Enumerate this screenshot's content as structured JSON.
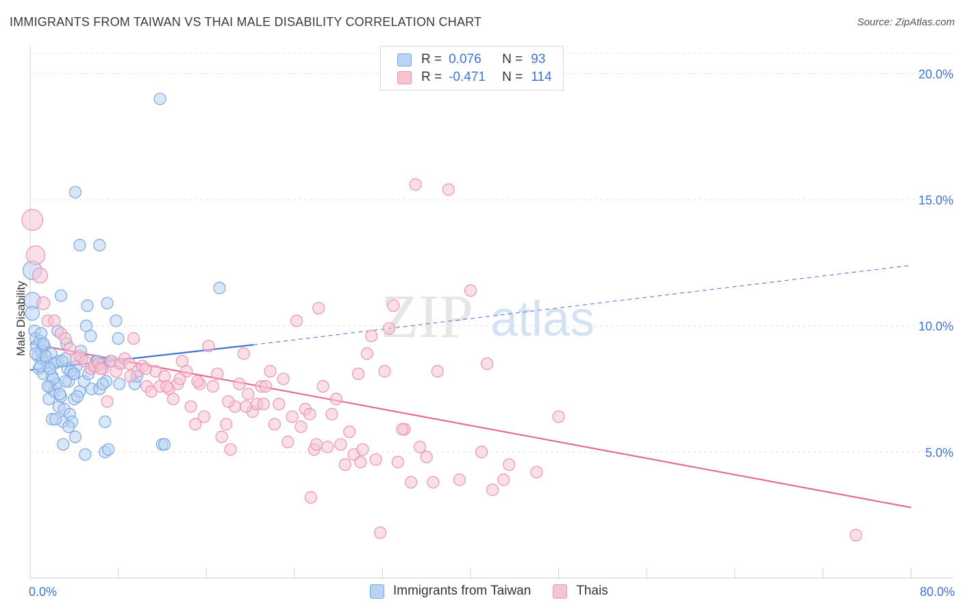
{
  "title": "IMMIGRANTS FROM TAIWAN VS THAI MALE DISABILITY CORRELATION CHART",
  "source": "Source: ZipAtlas.com",
  "watermark": {
    "zip": "ZIP",
    "atlas": "atlas"
  },
  "legend": {
    "r_label": "R =",
    "n_label": "N =",
    "rows": [
      {
        "r": "0.076",
        "n": "93",
        "fill": "#b9d3f3",
        "stroke": "#7aa7e0"
      },
      {
        "r": "-0.471",
        "n": "114",
        "fill": "#f8c4d4",
        "stroke": "#ec93b0"
      }
    ]
  },
  "bottom_legend": [
    {
      "label": "Immigrants from Taiwan",
      "fill": "#b9d3f3",
      "stroke": "#7aa7e0"
    },
    {
      "label": "Thais",
      "fill": "#f8c4d4",
      "stroke": "#ec93b0"
    }
  ],
  "chart_data": {
    "type": "scatter",
    "xlabel": "",
    "ylabel": "Male Disability",
    "xlim": [
      0,
      80
    ],
    "ylim": [
      0,
      20.8
    ],
    "x_tick_labels": [
      {
        "value": 0,
        "label": "0.0%"
      },
      {
        "value": 80,
        "label": "80.0%"
      }
    ],
    "y_tick_labels": [
      {
        "value": 5,
        "label": "5.0%"
      },
      {
        "value": 10,
        "label": "10.0%"
      },
      {
        "value": 15,
        "label": "15.0%"
      },
      {
        "value": 20,
        "label": "20.0%"
      }
    ],
    "x_minor_ticks": [
      8,
      16,
      24,
      32,
      40,
      48,
      56,
      64,
      72,
      80
    ],
    "grid": true,
    "series": [
      {
        "name": "Immigrants from Taiwan",
        "color": "#3b74d1",
        "fill": "#b9d3f3",
        "trend": {
          "x": [
            0,
            20.3
          ],
          "y": [
            8.25,
            9.25
          ],
          "dashed_to": {
            "x": [
              20.3,
              80
            ],
            "y": [
              9.25,
              12.4
            ]
          }
        },
        "points": [
          [
            0.2,
            12.2,
            1.6
          ],
          [
            0.2,
            11.0,
            1.4
          ],
          [
            0.2,
            10.5,
            1.2
          ],
          [
            0.4,
            9.8,
            1
          ],
          [
            0.5,
            9.5,
            1
          ],
          [
            0.6,
            9.2,
            1
          ],
          [
            0.7,
            8.8,
            1
          ],
          [
            0.8,
            8.3,
            1
          ],
          [
            0.9,
            9.4,
            1
          ],
          [
            1.0,
            9.0,
            1
          ],
          [
            1.1,
            8.7,
            1
          ],
          [
            1.2,
            8.1,
            1
          ],
          [
            1.3,
            9.2,
            1
          ],
          [
            1.5,
            8.6,
            1
          ],
          [
            1.6,
            8.4,
            1
          ],
          [
            1.7,
            7.1,
            1
          ],
          [
            1.8,
            7.6,
            1
          ],
          [
            2.0,
            8.0,
            1
          ],
          [
            2.0,
            6.3,
            1
          ],
          [
            2.2,
            7.4,
            1
          ],
          [
            2.4,
            7.7,
            1
          ],
          [
            2.5,
            8.6,
            1
          ],
          [
            2.6,
            6.8,
            1
          ],
          [
            2.8,
            7.2,
            1
          ],
          [
            3.0,
            6.2,
            1
          ],
          [
            3.1,
            6.7,
            1
          ],
          [
            3.2,
            8.7,
            1
          ],
          [
            3.3,
            9.3,
            1
          ],
          [
            3.4,
            8.3,
            1
          ],
          [
            3.5,
            7.8,
            1
          ],
          [
            3.6,
            6.5,
            1
          ],
          [
            3.8,
            6.2,
            1
          ],
          [
            3.9,
            8.1,
            1
          ],
          [
            4.0,
            7.1,
            1
          ],
          [
            4.1,
            5.6,
            1
          ],
          [
            4.2,
            8.4,
            1
          ],
          [
            4.5,
            7.4,
            1
          ],
          [
            4.6,
            9.0,
            1
          ],
          [
            4.7,
            8.7,
            1
          ],
          [
            4.9,
            7.8,
            1
          ],
          [
            5.0,
            4.9,
            1
          ],
          [
            5.1,
            10.0,
            1
          ],
          [
            5.2,
            10.8,
            1
          ],
          [
            5.3,
            8.1,
            1
          ],
          [
            5.5,
            9.6,
            1
          ],
          [
            5.6,
            7.5,
            1
          ],
          [
            6.0,
            8.6,
            1
          ],
          [
            6.3,
            7.5,
            1
          ],
          [
            6.5,
            8.5,
            1
          ],
          [
            6.7,
            8.5,
            1
          ],
          [
            6.8,
            6.2,
            1
          ],
          [
            6.8,
            5.0,
            1
          ],
          [
            6.9,
            7.8,
            1
          ],
          [
            7.0,
            10.9,
            1
          ],
          [
            7.1,
            5.1,
            1
          ],
          [
            7.3,
            8.6,
            1
          ],
          [
            7.8,
            10.2,
            1
          ],
          [
            8.0,
            9.5,
            1
          ],
          [
            8.1,
            7.7,
            1
          ],
          [
            8.2,
            8.5,
            1
          ],
          [
            9.5,
            7.7,
            1
          ],
          [
            9.7,
            8.0,
            1
          ],
          [
            11.8,
            19.0,
            1
          ],
          [
            12.0,
            5.3,
            1
          ],
          [
            12.2,
            5.3,
            1
          ],
          [
            17.2,
            11.5,
            1
          ],
          [
            4.1,
            15.3,
            1
          ],
          [
            4.5,
            13.2,
            1
          ],
          [
            6.3,
            13.2,
            1
          ],
          [
            2.8,
            11.2,
            1
          ],
          [
            2.5,
            9.8,
            1
          ],
          [
            1.9,
            8.9,
            1
          ],
          [
            2.1,
            7.9,
            1
          ],
          [
            3.0,
            5.3,
            1
          ],
          [
            2.2,
            8.5,
            1
          ],
          [
            1.4,
            8.8,
            1
          ],
          [
            0.9,
            8.4,
            1
          ],
          [
            1.0,
            9.7,
            1
          ],
          [
            3.7,
            8.2,
            1
          ],
          [
            4.3,
            7.2,
            1
          ],
          [
            1.6,
            7.6,
            1
          ],
          [
            2.9,
            8.6,
            1
          ],
          [
            3.5,
            6.0,
            1
          ],
          [
            5.9,
            8.4,
            1
          ],
          [
            6.6,
            7.7,
            1
          ],
          [
            0.5,
            8.9,
            1
          ],
          [
            2.7,
            7.3,
            1
          ],
          [
            3.2,
            7.8,
            1
          ],
          [
            4.0,
            8.1,
            1
          ],
          [
            1.2,
            9.3,
            1
          ],
          [
            2.3,
            6.3,
            1
          ],
          [
            6.1,
            8.6,
            1
          ],
          [
            1.8,
            8.3,
            1
          ]
        ]
      },
      {
        "name": "Thais",
        "color": "#e46b97",
        "fill": "#f8c4d4",
        "trend": {
          "x": [
            0,
            80
          ],
          "y": [
            9.3,
            2.8
          ]
        },
        "points": [
          [
            0.2,
            14.2,
            1.8
          ],
          [
            0.5,
            12.8,
            1.6
          ],
          [
            0.9,
            12.0,
            1.3
          ],
          [
            1.2,
            10.9,
            1.1
          ],
          [
            1.6,
            10.2,
            1
          ],
          [
            2.2,
            10.2,
            1
          ],
          [
            2.8,
            9.7,
            1
          ],
          [
            3.2,
            9.5,
            1
          ],
          [
            3.6,
            9.1,
            1
          ],
          [
            4.2,
            8.7,
            1
          ],
          [
            4.5,
            8.8,
            1
          ],
          [
            5.0,
            8.6,
            1
          ],
          [
            5.5,
            8.3,
            1
          ],
          [
            5.8,
            8.4,
            1
          ],
          [
            6.2,
            8.5,
            1
          ],
          [
            6.6,
            8.3,
            1
          ],
          [
            7.0,
            7.0,
            1
          ],
          [
            7.4,
            8.6,
            1
          ],
          [
            7.8,
            8.2,
            1
          ],
          [
            8.2,
            8.5,
            1
          ],
          [
            8.6,
            8.7,
            1
          ],
          [
            9.0,
            8.5,
            1
          ],
          [
            9.4,
            9.5,
            1
          ],
          [
            9.8,
            8.2,
            1
          ],
          [
            10.2,
            8.4,
            1
          ],
          [
            10.6,
            7.6,
            1
          ],
          [
            11.0,
            7.4,
            1
          ],
          [
            11.4,
            8.2,
            1
          ],
          [
            11.8,
            7.6,
            1
          ],
          [
            12.2,
            8.0,
            1
          ],
          [
            12.6,
            7.5,
            1
          ],
          [
            13.0,
            7.1,
            1
          ],
          [
            13.4,
            7.7,
            1
          ],
          [
            13.8,
            8.6,
            1
          ],
          [
            14.2,
            8.2,
            1
          ],
          [
            14.6,
            6.8,
            1
          ],
          [
            15.0,
            6.1,
            1
          ],
          [
            15.4,
            7.7,
            1
          ],
          [
            15.8,
            6.4,
            1
          ],
          [
            16.2,
            9.2,
            1
          ],
          [
            16.6,
            7.6,
            1
          ],
          [
            17.0,
            8.1,
            1
          ],
          [
            17.4,
            5.6,
            1
          ],
          [
            17.8,
            6.1,
            1
          ],
          [
            18.2,
            5.1,
            1
          ],
          [
            18.6,
            6.8,
            1
          ],
          [
            19.0,
            7.7,
            1
          ],
          [
            19.4,
            8.9,
            1
          ],
          [
            19.8,
            7.3,
            1
          ],
          [
            20.2,
            6.6,
            1
          ],
          [
            20.6,
            6.9,
            1
          ],
          [
            21.0,
            7.6,
            1
          ],
          [
            21.4,
            7.6,
            1
          ],
          [
            21.8,
            8.2,
            1
          ],
          [
            22.2,
            6.1,
            1
          ],
          [
            22.6,
            6.9,
            1
          ],
          [
            23.0,
            7.9,
            1
          ],
          [
            23.4,
            5.4,
            1
          ],
          [
            23.8,
            6.4,
            1
          ],
          [
            24.2,
            10.2,
            1
          ],
          [
            24.6,
            6.0,
            1
          ],
          [
            25.0,
            6.7,
            1
          ],
          [
            25.4,
            6.5,
            1
          ],
          [
            25.8,
            5.1,
            1
          ],
          [
            26.2,
            10.7,
            1
          ],
          [
            26.6,
            7.6,
            1
          ],
          [
            27.0,
            5.2,
            1
          ],
          [
            27.4,
            6.5,
            1
          ],
          [
            27.8,
            7.1,
            1
          ],
          [
            28.2,
            5.3,
            1
          ],
          [
            28.6,
            4.5,
            1
          ],
          [
            29.0,
            5.8,
            1
          ],
          [
            29.4,
            4.9,
            1
          ],
          [
            29.8,
            8.1,
            1
          ],
          [
            30.2,
            5.1,
            1
          ],
          [
            30.6,
            8.9,
            1
          ],
          [
            31.0,
            9.6,
            1
          ],
          [
            31.4,
            4.7,
            1
          ],
          [
            31.8,
            1.8,
            1
          ],
          [
            32.2,
            8.2,
            1
          ],
          [
            32.6,
            9.9,
            1
          ],
          [
            33.0,
            10.8,
            1
          ],
          [
            33.4,
            4.6,
            1
          ],
          [
            34.0,
            5.9,
            1
          ],
          [
            34.6,
            3.8,
            1
          ],
          [
            35.0,
            15.6,
            1
          ],
          [
            35.4,
            5.2,
            1
          ],
          [
            36.0,
            4.8,
            1
          ],
          [
            36.6,
            3.8,
            1
          ],
          [
            37.0,
            8.2,
            1
          ],
          [
            38.0,
            15.4,
            1
          ],
          [
            39.0,
            3.9,
            1
          ],
          [
            40.0,
            11.4,
            1
          ],
          [
            41.0,
            5.0,
            1
          ],
          [
            41.5,
            8.5,
            1
          ],
          [
            42.0,
            3.5,
            1
          ],
          [
            43.0,
            3.9,
            1
          ],
          [
            43.5,
            4.5,
            1
          ],
          [
            46.0,
            4.2,
            1
          ],
          [
            48.0,
            6.4,
            1
          ],
          [
            75.0,
            1.7,
            1
          ],
          [
            25.5,
            3.2,
            1
          ],
          [
            26.0,
            5.3,
            1
          ],
          [
            30.0,
            4.6,
            1
          ],
          [
            33.8,
            5.9,
            1
          ],
          [
            12.4,
            7.6,
            1
          ],
          [
            9.1,
            8.0,
            1
          ],
          [
            15.2,
            7.8,
            1
          ],
          [
            18.0,
            7.0,
            1
          ],
          [
            21.2,
            6.9,
            1
          ],
          [
            6.4,
            8.3,
            1
          ],
          [
            10.5,
            8.3,
            1
          ],
          [
            13.6,
            7.9,
            1
          ],
          [
            19.6,
            6.8,
            1
          ]
        ]
      }
    ]
  }
}
